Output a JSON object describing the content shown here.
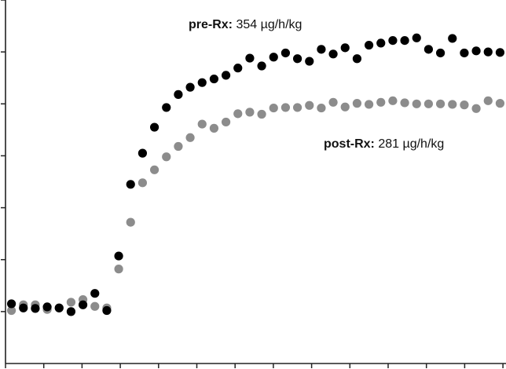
{
  "chart_data": {
    "type": "scatter",
    "grid": false,
    "legend": "none",
    "x": [
      1,
      2,
      3,
      4,
      5,
      6,
      7,
      8,
      9,
      10,
      11,
      12,
      13,
      14,
      15,
      16,
      17,
      18,
      19,
      20,
      21,
      22,
      23,
      24,
      25,
      26,
      27,
      28,
      29,
      30,
      31,
      32,
      33,
      34,
      35,
      36,
      37,
      38,
      39,
      40,
      41,
      42
    ],
    "xlim": [
      0.5,
      42.5
    ],
    "ylim": [
      0,
      7
    ],
    "series": [
      {
        "name": "",
        "color": "#000000",
        "values": [
          1.15,
          1.07,
          1.06,
          1.09,
          1.07,
          1.0,
          1.13,
          1.35,
          1.02,
          2.07,
          3.45,
          4.05,
          4.55,
          4.93,
          5.18,
          5.32,
          5.41,
          5.48,
          5.55,
          5.69,
          5.88,
          5.73,
          5.9,
          5.98,
          5.87,
          5.82,
          6.05,
          5.96,
          6.08,
          5.87,
          6.13,
          6.17,
          6.22,
          6.22,
          6.27,
          6.05,
          5.98,
          6.26,
          5.98,
          6.02,
          6.0,
          5.99
        ]
      },
      {
        "name": "",
        "color": "#8c8c8c",
        "values": [
          1.02,
          1.13,
          1.13,
          1.04,
          1.07,
          1.18,
          1.23,
          1.1,
          1.07,
          1.82,
          2.72,
          3.48,
          3.73,
          3.98,
          4.18,
          4.35,
          4.61,
          4.53,
          4.65,
          4.81,
          4.84,
          4.8,
          4.92,
          4.93,
          4.93,
          4.97,
          4.92,
          5.03,
          4.94,
          5.01,
          4.99,
          5.03,
          5.06,
          5.02,
          5.0,
          5.0,
          5.0,
          4.99,
          4.98,
          4.91,
          5.06,
          5.01
        ]
      }
    ],
    "annotations": [
      {
        "id": "pre",
        "bold": "pre-Rx:",
        "text": " 354 µg/h/kg"
      },
      {
        "id": "post",
        "bold": "post-Rx:",
        "text": " 281 µg/h/kg"
      }
    ]
  }
}
